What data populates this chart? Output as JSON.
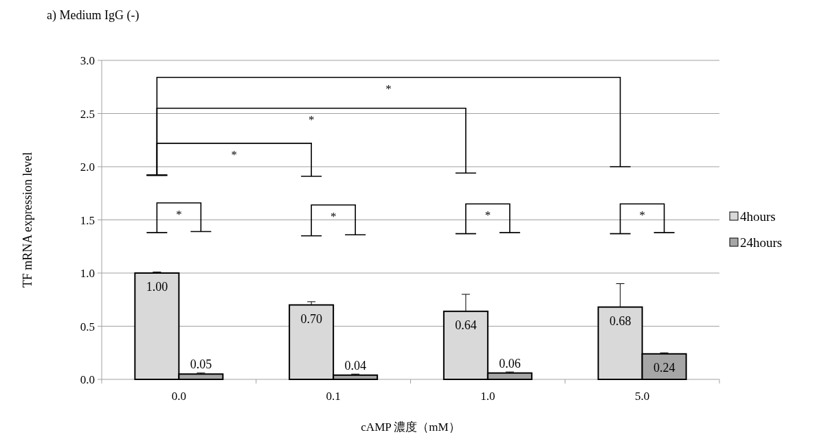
{
  "chart_data": {
    "type": "bar",
    "title": "a) Medium IgG (-)",
    "xlabel": "cAMP 濃度（mM）",
    "ylabel": "TF mRNA expression level",
    "categories": [
      "0.0",
      "0.1",
      "1.0",
      "5.0"
    ],
    "series": [
      {
        "name": "4hours",
        "color": "#d9d9d9",
        "values": [
          1.0,
          0.7,
          0.64,
          0.68
        ],
        "errors": [
          0.01,
          0.03,
          0.16,
          0.22
        ],
        "value_labels": [
          "1.00",
          "0.70",
          "0.64",
          "0.68"
        ]
      },
      {
        "name": "24hours",
        "color": "#a6a6a6",
        "values": [
          0.05,
          0.04,
          0.06,
          0.24
        ],
        "errors": [
          0.01,
          0.01,
          0.01,
          0.01
        ],
        "value_labels": [
          "0.05",
          "0.04",
          "0.06",
          "0.24"
        ]
      }
    ],
    "ylim": [
      0,
      3.0
    ],
    "yticks": [
      {
        "value": 0,
        "label": "0.0"
      },
      {
        "value": 0.5,
        "label": "0.5"
      },
      {
        "value": 1.0,
        "label": "1.0"
      },
      {
        "value": 1.5,
        "label": "1.5"
      },
      {
        "value": 2.0,
        "label": "2.0"
      },
      {
        "value": 2.5,
        "label": "2.5"
      },
      {
        "value": 3.0,
        "label": "3.0"
      }
    ],
    "grid": "y",
    "legend": "right",
    "annotations": [
      "*",
      "*",
      "*",
      "*",
      "*",
      "*",
      "*"
    ]
  }
}
